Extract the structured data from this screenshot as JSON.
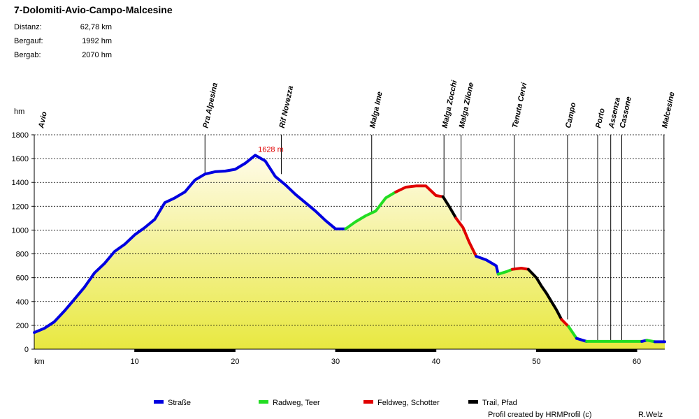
{
  "title": "7-Dolomiti-Avio-Campo-Malcesine",
  "stats": [
    {
      "label": "Distanz:",
      "value": "62,78 km"
    },
    {
      "label": "Bergauf:",
      "value": "1992 hm"
    },
    {
      "label": "Bergab:",
      "value": "2070 hm"
    }
  ],
  "credits": {
    "left": "Profil created by HRMProfil (c)",
    "right": "R.Welz"
  },
  "colors": {
    "strasse": "#0000e0",
    "radweg": "#22dd22",
    "feldweg": "#e00000",
    "trail": "#000000",
    "fill_top": "#fffbe8",
    "fill_bottom": "#e8e840"
  },
  "chart_data": {
    "type": "area",
    "title": "7-Dolomiti-Avio-Campo-Malcesine",
    "xlabel": "km",
    "ylabel": "hm",
    "xlim": [
      0,
      62.78
    ],
    "ylim": [
      0,
      1800
    ],
    "x_ticks": [
      10,
      20,
      30,
      40,
      50,
      60
    ],
    "y_ticks": [
      0,
      200,
      400,
      600,
      800,
      1000,
      1200,
      1400,
      1600,
      1800
    ],
    "peak_label": {
      "text": "1628 m",
      "x": 22.0,
      "y": 1628
    },
    "waypoints": [
      {
        "name": "Avio",
        "km": 0.0,
        "elev": 140
      },
      {
        "name": "Pra Alpesina",
        "km": 17.0,
        "elev": 1480
      },
      {
        "name": "Rif Novezza",
        "km": 24.6,
        "elev": 1470
      },
      {
        "name": "Malga Ime",
        "km": 33.6,
        "elev": 1150
      },
      {
        "name": "Malga Zocchi",
        "km": 40.8,
        "elev": 1290
      },
      {
        "name": "Malga Zilone",
        "km": 42.5,
        "elev": 1080
      },
      {
        "name": "Tenuta Cervi",
        "km": 47.8,
        "elev": 680
      },
      {
        "name": "Campo",
        "km": 53.1,
        "elev": 250
      },
      {
        "name": "Porto",
        "km": 56.1,
        "elev": 70
      },
      {
        "name": "Assenza",
        "km": 57.4,
        "elev": 70
      },
      {
        "name": "Cassone",
        "km": 58.5,
        "elev": 70
      },
      {
        "name": "Malcesine",
        "km": 62.7,
        "elev": 65
      }
    ],
    "surface_bars": [
      {
        "from": 10,
        "to": 20
      },
      {
        "from": 30,
        "to": 40
      },
      {
        "from": 50,
        "to": 60
      }
    ],
    "legend": [
      {
        "key": "strasse",
        "label": "Straße"
      },
      {
        "key": "radweg",
        "label": "Radweg, Teer"
      },
      {
        "key": "feldweg",
        "label": "Feldweg, Schotter"
      },
      {
        "key": "trail",
        "label": "Trail, Pfad"
      }
    ],
    "series": [
      {
        "name": "Straße",
        "key": "strasse",
        "points": [
          [
            0,
            140
          ],
          [
            1,
            175
          ],
          [
            2,
            230
          ],
          [
            3,
            320
          ],
          [
            4,
            420
          ],
          [
            5,
            520
          ],
          [
            6,
            640
          ],
          [
            7,
            720
          ],
          [
            8,
            820
          ],
          [
            9,
            880
          ],
          [
            10,
            960
          ],
          [
            11,
            1020
          ],
          [
            12,
            1090
          ],
          [
            13,
            1230
          ],
          [
            14,
            1270
          ],
          [
            15,
            1320
          ],
          [
            16,
            1420
          ],
          [
            17,
            1470
          ],
          [
            18,
            1490
          ],
          [
            19,
            1495
          ],
          [
            20,
            1510
          ],
          [
            21,
            1560
          ],
          [
            22,
            1628
          ],
          [
            23,
            1580
          ],
          [
            24,
            1450
          ],
          [
            25,
            1380
          ],
          [
            26,
            1300
          ],
          [
            27,
            1230
          ],
          [
            28,
            1160
          ],
          [
            29,
            1080
          ],
          [
            30,
            1010
          ],
          [
            31,
            1010
          ]
        ]
      },
      {
        "name": "Radweg, Teer",
        "key": "radweg",
        "points": [
          [
            31,
            1010
          ],
          [
            32,
            1070
          ],
          [
            33,
            1120
          ],
          [
            34,
            1160
          ],
          [
            35,
            1270
          ],
          [
            36,
            1320
          ]
        ]
      },
      {
        "name": "Feldweg, Schotter",
        "key": "feldweg",
        "points": [
          [
            36,
            1320
          ],
          [
            37,
            1360
          ],
          [
            38,
            1370
          ],
          [
            39,
            1370
          ],
          [
            40,
            1290
          ],
          [
            40.7,
            1280
          ]
        ]
      },
      {
        "name": "Trail, Pfad",
        "key": "trail",
        "points": [
          [
            40.7,
            1280
          ],
          [
            41.3,
            1200
          ],
          [
            42.0,
            1100
          ]
        ]
      },
      {
        "name": "Feldweg, Schotter",
        "key": "feldweg",
        "points": [
          [
            42.0,
            1100
          ],
          [
            42.7,
            1020
          ],
          [
            43.3,
            900
          ],
          [
            44.0,
            780
          ]
        ]
      },
      {
        "name": "Straße",
        "key": "strasse",
        "points": [
          [
            44.0,
            780
          ],
          [
            45.0,
            750
          ],
          [
            46.0,
            700
          ],
          [
            46.2,
            630
          ]
        ]
      },
      {
        "name": "Radweg, Teer",
        "key": "radweg",
        "points": [
          [
            46.2,
            630
          ],
          [
            47.0,
            650
          ],
          [
            47.6,
            670
          ]
        ]
      },
      {
        "name": "Feldweg, Schotter",
        "key": "feldweg",
        "points": [
          [
            47.6,
            670
          ],
          [
            48.5,
            680
          ],
          [
            49.2,
            670
          ]
        ]
      },
      {
        "name": "Trail, Pfad",
        "key": "trail",
        "points": [
          [
            49.2,
            670
          ],
          [
            50.0,
            600
          ],
          [
            50.5,
            530
          ],
          [
            51.0,
            470
          ],
          [
            51.5,
            400
          ],
          [
            52.0,
            330
          ],
          [
            52.5,
            250
          ]
        ]
      },
      {
        "name": "Feldweg, Schotter",
        "key": "feldweg",
        "points": [
          [
            52.5,
            250
          ],
          [
            53.2,
            190
          ]
        ]
      },
      {
        "name": "Radweg, Teer",
        "key": "radweg",
        "points": [
          [
            53.2,
            190
          ],
          [
            54.0,
            90
          ]
        ]
      },
      {
        "name": "Straße",
        "key": "strasse",
        "points": [
          [
            54.0,
            90
          ],
          [
            55.0,
            65
          ]
        ]
      },
      {
        "name": "Radweg, Teer",
        "key": "radweg",
        "points": [
          [
            55.0,
            65
          ],
          [
            57.0,
            65
          ],
          [
            59.0,
            65
          ],
          [
            60.5,
            65
          ]
        ]
      },
      {
        "name": "Straße",
        "key": "strasse",
        "points": [
          [
            60.5,
            65
          ],
          [
            61.0,
            75
          ]
        ]
      },
      {
        "name": "Radweg, Teer",
        "key": "radweg",
        "points": [
          [
            61.0,
            75
          ],
          [
            61.8,
            62
          ]
        ]
      },
      {
        "name": "Straße",
        "key": "strasse",
        "points": [
          [
            61.8,
            62
          ],
          [
            62.78,
            62
          ]
        ]
      }
    ]
  }
}
